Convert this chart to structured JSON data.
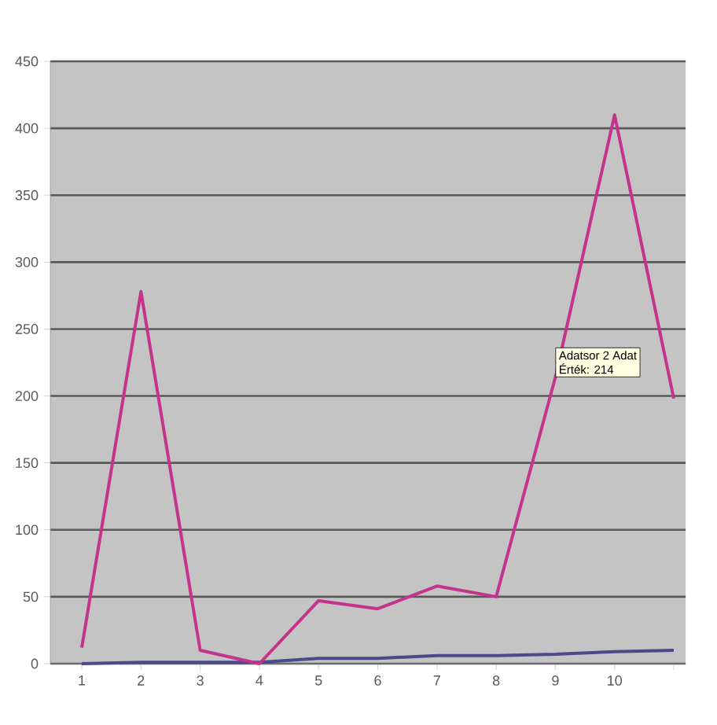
{
  "chart_data": {
    "type": "line",
    "categories": [
      "1",
      "2",
      "3",
      "4",
      "5",
      "6",
      "7",
      "8",
      "9",
      "10",
      null
    ],
    "series": [
      {
        "color": "#4a4a8c",
        "values": [
          0,
          1,
          1,
          1,
          4,
          4,
          6,
          6,
          7,
          9,
          10
        ]
      },
      {
        "color": "#c4348c",
        "values": [
          12,
          278,
          10,
          0,
          47,
          41,
          58,
          50,
          214,
          410,
          198
        ]
      }
    ],
    "ylim": [
      0,
      450
    ],
    "yticks": [
      0,
      50,
      100,
      150,
      200,
      250,
      300,
      350,
      400,
      450
    ],
    "grid": "y",
    "marker": "none",
    "line_style": "solid",
    "annotations": [
      {
        "text": "Adatsor 2 Adat",
        "x": "9",
        "y": 214
      },
      {
        "text": "Érték: 214",
        "x": "9",
        "y": 214
      }
    ]
  }
}
